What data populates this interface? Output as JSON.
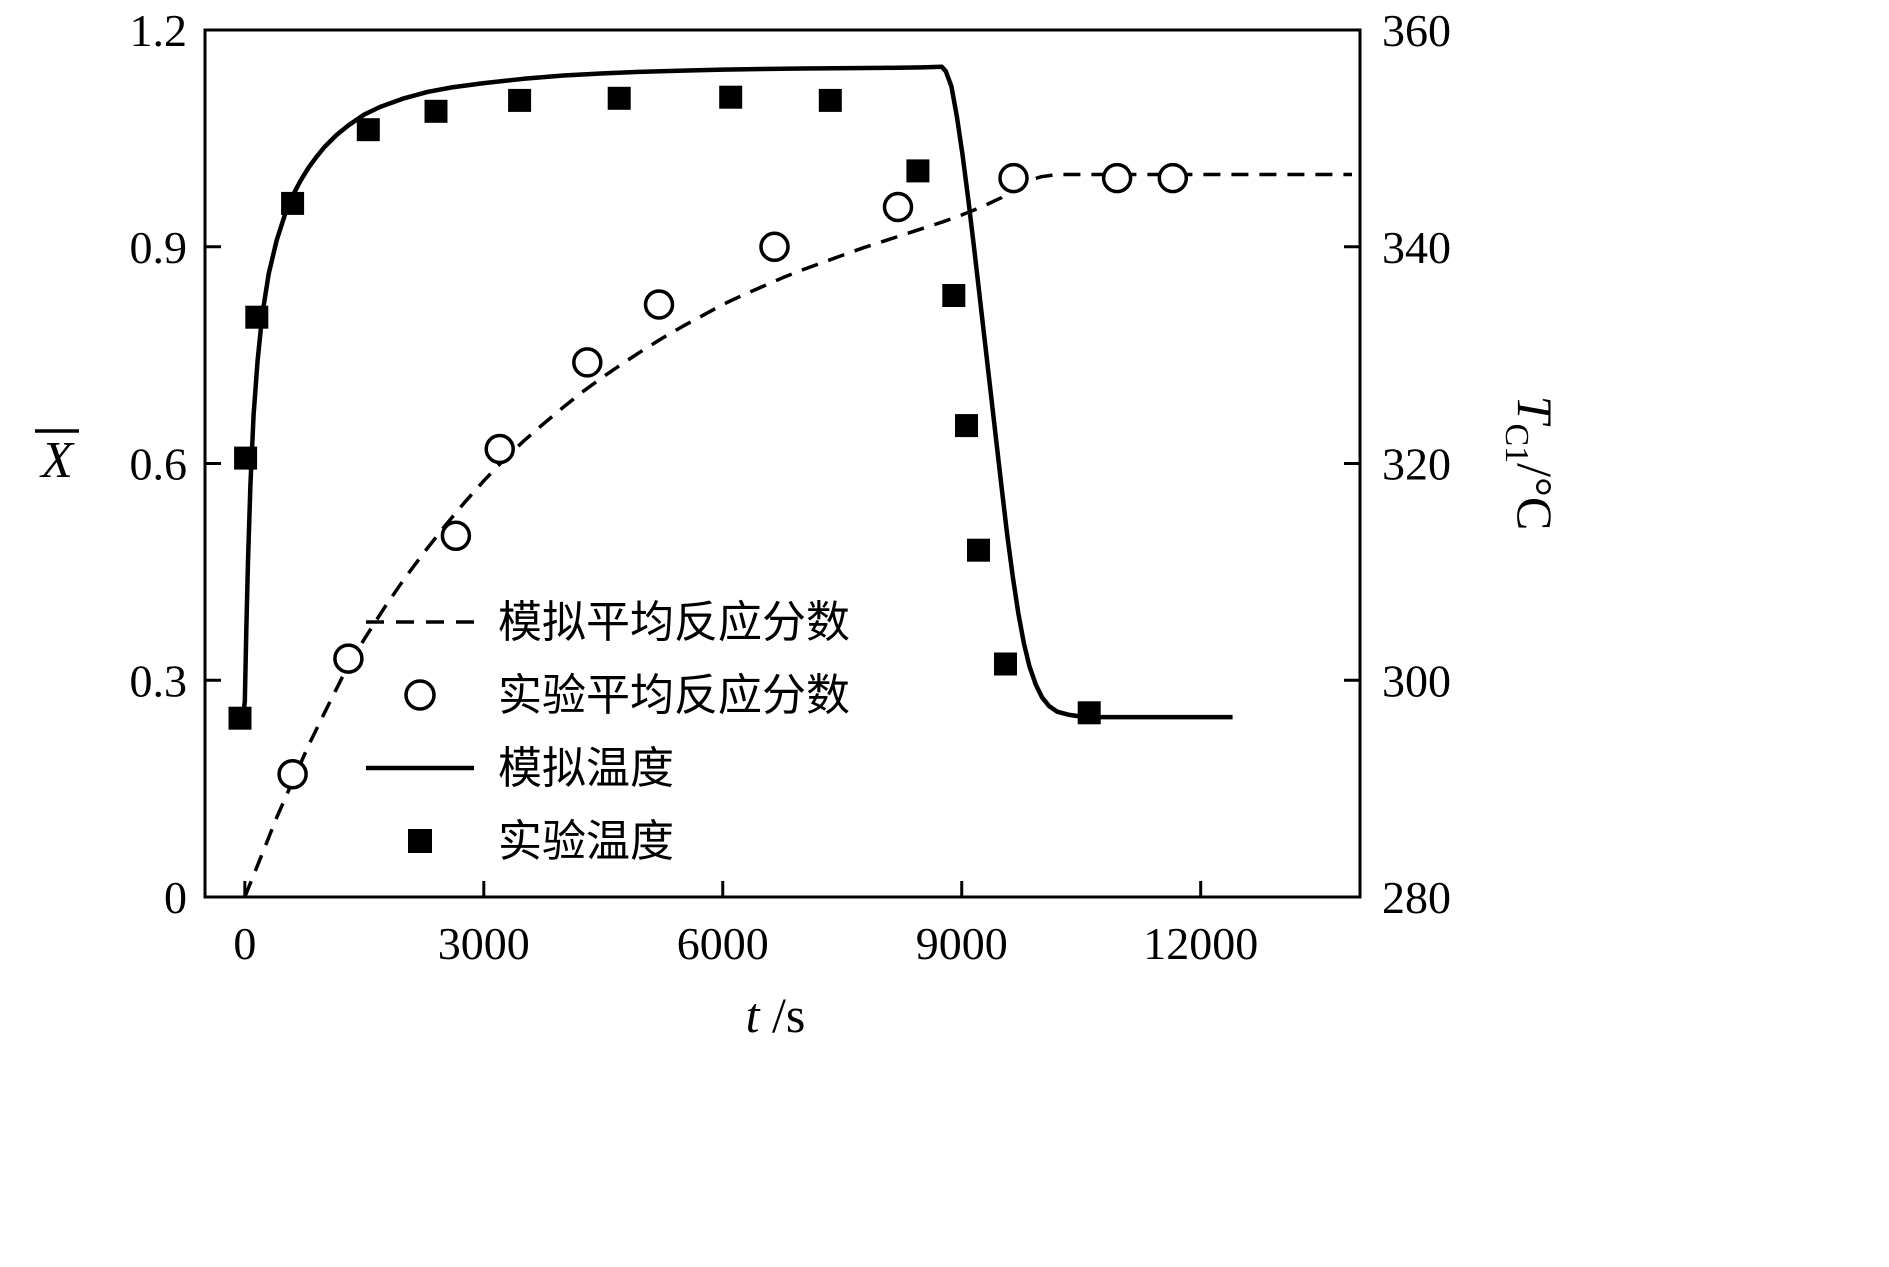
{
  "page": {
    "background": "#ffffff",
    "foreground": "#000000"
  },
  "chart_data": {
    "type": "line",
    "title": "",
    "xlabel": {
      "variable": "t",
      "unit": "/s"
    },
    "ylabel_left": {
      "variable": "X",
      "overline": true
    },
    "ylabel_right": {
      "variable": "T",
      "subscript": "C1",
      "unit": "/°C"
    },
    "x_range": [
      -500,
      14000
    ],
    "x_ticks": [
      "0",
      "3000",
      "6000",
      "9000",
      "12000"
    ],
    "x_tick_values": [
      0,
      3000,
      6000,
      9000,
      12000
    ],
    "y_left_range": [
      0,
      1.2
    ],
    "y_left_ticks": [
      "0",
      "0.3",
      "0.6",
      "0.9",
      "1.2"
    ],
    "y_left_tick_values": [
      0,
      0.3,
      0.6,
      0.9,
      1.2
    ],
    "y_right_range": [
      280,
      360
    ],
    "y_right_ticks": [
      "280",
      "300",
      "320",
      "340",
      "360"
    ],
    "y_right_tick_values": [
      280,
      300,
      320,
      340,
      360
    ],
    "grid": false,
    "legend_position": "inside-center-left",
    "colors": {
      "foreground": "#000000",
      "background": "#ffffff"
    },
    "series": [
      {
        "name": "模拟平均反应分数",
        "kind": "line",
        "style": "dashed",
        "axis": "left",
        "points": [
          [
            0,
            0
          ],
          [
            200,
            0.055
          ],
          [
            400,
            0.11
          ],
          [
            600,
            0.16
          ],
          [
            800,
            0.21
          ],
          [
            1000,
            0.255
          ],
          [
            1250,
            0.31
          ],
          [
            1500,
            0.357
          ],
          [
            1750,
            0.4
          ],
          [
            2000,
            0.44
          ],
          [
            2250,
            0.477
          ],
          [
            2500,
            0.512
          ],
          [
            2750,
            0.545
          ],
          [
            3000,
            0.576
          ],
          [
            3250,
            0.605
          ],
          [
            3500,
            0.631
          ],
          [
            3750,
            0.655
          ],
          [
            4000,
            0.678
          ],
          [
            4250,
            0.7
          ],
          [
            4500,
            0.72
          ],
          [
            4750,
            0.739
          ],
          [
            5000,
            0.757
          ],
          [
            5250,
            0.774
          ],
          [
            5500,
            0.79
          ],
          [
            5750,
            0.805
          ],
          [
            6000,
            0.82
          ],
          [
            6250,
            0.833
          ],
          [
            6500,
            0.845
          ],
          [
            6750,
            0.857
          ],
          [
            7000,
            0.868
          ],
          [
            7250,
            0.878
          ],
          [
            7500,
            0.888
          ],
          [
            7750,
            0.898
          ],
          [
            8000,
            0.907
          ],
          [
            8250,
            0.916
          ],
          [
            8500,
            0.925
          ],
          [
            8750,
            0.934
          ],
          [
            9000,
            0.944
          ],
          [
            9250,
            0.955
          ],
          [
            9500,
            0.968
          ],
          [
            9700,
            0.982
          ],
          [
            9850,
            0.992
          ],
          [
            10000,
            0.997
          ],
          [
            10200,
            1.0
          ],
          [
            10600,
            1.0
          ],
          [
            11000,
            1.0
          ],
          [
            12000,
            1.0
          ],
          [
            13000,
            1.0
          ],
          [
            13900,
            1.0
          ]
        ]
      },
      {
        "name": "实验平均反应分数",
        "kind": "scatter",
        "marker": "open-circle",
        "axis": "left",
        "points": [
          [
            600,
            0.17
          ],
          [
            1300,
            0.33
          ],
          [
            2650,
            0.5
          ],
          [
            3200,
            0.62
          ],
          [
            4300,
            0.74
          ],
          [
            5200,
            0.82
          ],
          [
            6650,
            0.9
          ],
          [
            8200,
            0.955
          ],
          [
            9650,
            0.995
          ],
          [
            10950,
            0.995
          ],
          [
            11650,
            0.995
          ]
        ]
      },
      {
        "name": "模拟温度",
        "kind": "line",
        "style": "solid",
        "axis": "right",
        "points": [
          [
            -100,
            296.8
          ],
          [
            -20,
            296.9
          ],
          [
            0,
            298
          ],
          [
            20,
            305
          ],
          [
            40,
            311
          ],
          [
            70,
            318
          ],
          [
            110,
            324.5
          ],
          [
            160,
            329.5
          ],
          [
            220,
            333.8
          ],
          [
            300,
            337.5
          ],
          [
            400,
            340.6
          ],
          [
            500,
            342.9
          ],
          [
            600,
            344.7
          ],
          [
            700,
            346.1
          ],
          [
            800,
            347.3
          ],
          [
            900,
            348.3
          ],
          [
            1000,
            349.2
          ],
          [
            1150,
            350.3
          ],
          [
            1300,
            351.2
          ],
          [
            1500,
            352.2
          ],
          [
            1700,
            352.9
          ],
          [
            2000,
            353.7
          ],
          [
            2300,
            354.3
          ],
          [
            2600,
            354.7
          ],
          [
            3000,
            355.1
          ],
          [
            3500,
            355.5
          ],
          [
            4000,
            355.8
          ],
          [
            4500,
            356.0
          ],
          [
            5000,
            356.15
          ],
          [
            5500,
            356.25
          ],
          [
            6000,
            356.35
          ],
          [
            7000,
            356.45
          ],
          [
            8000,
            356.5
          ],
          [
            8500,
            356.55
          ],
          [
            8750,
            356.6
          ],
          [
            8800,
            356.2
          ],
          [
            8870,
            354.8
          ],
          [
            8940,
            352
          ],
          [
            9010,
            348.5
          ],
          [
            9080,
            344.5
          ],
          [
            9150,
            340.2
          ],
          [
            9220,
            335.8
          ],
          [
            9290,
            331.3
          ],
          [
            9360,
            326.8
          ],
          [
            9430,
            322.3
          ],
          [
            9500,
            317.8
          ],
          [
            9570,
            313.5
          ],
          [
            9640,
            309.6
          ],
          [
            9710,
            306.2
          ],
          [
            9780,
            303.4
          ],
          [
            9850,
            301.3
          ],
          [
            9930,
            299.6
          ],
          [
            10010,
            298.4
          ],
          [
            10100,
            297.6
          ],
          [
            10200,
            297.1
          ],
          [
            10350,
            296.8
          ],
          [
            10550,
            296.6
          ],
          [
            10800,
            296.6
          ],
          [
            11200,
            296.6
          ],
          [
            11800,
            296.6
          ],
          [
            12400,
            296.6
          ]
        ]
      },
      {
        "name": "实验温度",
        "kind": "scatter",
        "marker": "filled-square",
        "axis": "right",
        "points": [
          [
            -60,
            296.5
          ],
          [
            10,
            320.5
          ],
          [
            150,
            333.5
          ],
          [
            600,
            344
          ],
          [
            1550,
            350.8
          ],
          [
            2400,
            352.5
          ],
          [
            3450,
            353.5
          ],
          [
            4700,
            353.7
          ],
          [
            6100,
            353.8
          ],
          [
            7350,
            353.5
          ],
          [
            8450,
            347
          ],
          [
            8900,
            335.5
          ],
          [
            9060,
            323.5
          ],
          [
            9210,
            312
          ],
          [
            9550,
            301.5
          ],
          [
            10600,
            297
          ]
        ]
      }
    ],
    "legend": [
      {
        "sample": "dashed-line",
        "label": "模拟平均反应分数"
      },
      {
        "sample": "open-circle",
        "label": "实验平均反应分数"
      },
      {
        "sample": "solid-line",
        "label": "模拟温度"
      },
      {
        "sample": "filled-square",
        "label": "实验温度"
      }
    ]
  }
}
